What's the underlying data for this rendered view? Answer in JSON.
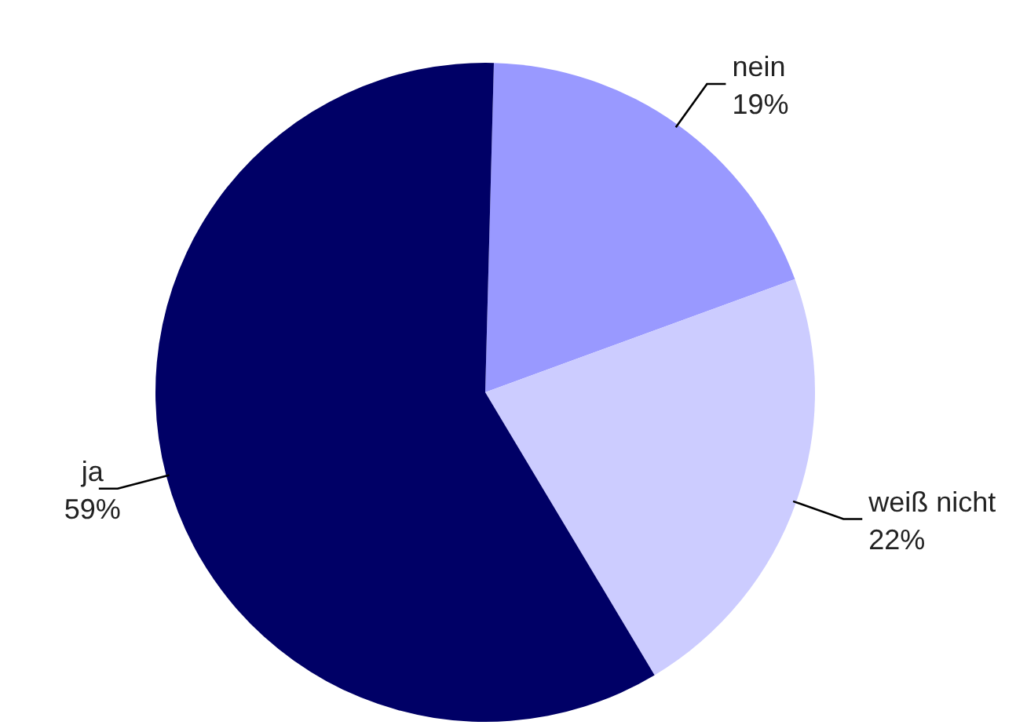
{
  "chart_data": {
    "type": "pie",
    "categories": [
      "nein",
      "weiß nicht",
      "ja"
    ],
    "values": [
      19,
      22,
      59
    ],
    "colors": [
      "#9999ff",
      "#ccccff",
      "#000066"
    ],
    "value_labels": [
      "19%",
      "22%",
      "59%"
    ]
  }
}
